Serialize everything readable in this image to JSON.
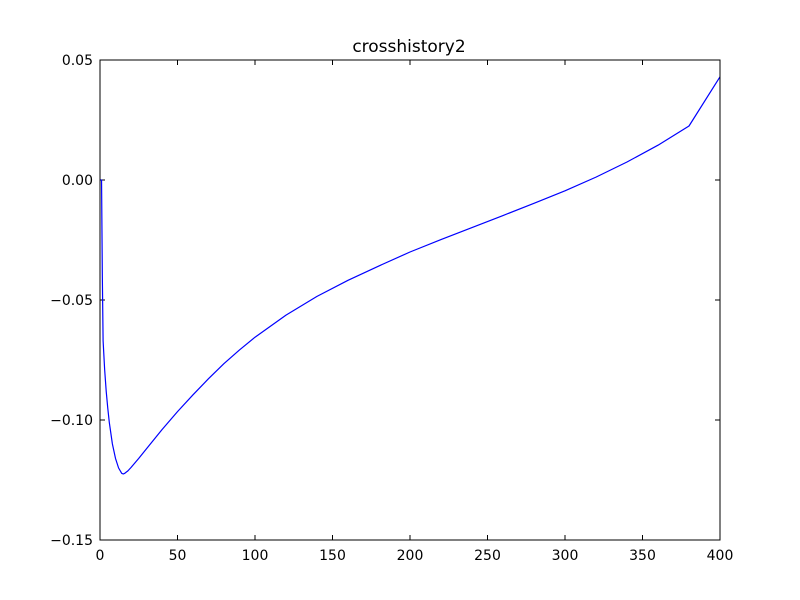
{
  "chart_data": {
    "type": "line",
    "title": "crosshistory2",
    "xlabel": "",
    "ylabel": "",
    "xlim": [
      0,
      400
    ],
    "ylim": [
      -0.15,
      0.05
    ],
    "xticks": [
      0,
      50,
      100,
      150,
      200,
      250,
      300,
      350,
      400
    ],
    "xtick_labels": [
      "0",
      "50",
      "100",
      "150",
      "200",
      "250",
      "300",
      "350",
      "400"
    ],
    "yticks": [
      -0.15,
      -0.1,
      -0.05,
      0.0,
      0.05
    ],
    "ytick_labels": [
      "−0.15",
      "−0.10",
      "−0.05",
      "0.00",
      "0.05"
    ],
    "grid": false,
    "series": [
      {
        "color": "#0000ff",
        "x": [
          0,
          1,
          1.5,
          2,
          3,
          4,
          5,
          6,
          8,
          10,
          12,
          14,
          15,
          16,
          18,
          20,
          25,
          30,
          40,
          50,
          60,
          70,
          80,
          90,
          100,
          120,
          140,
          160,
          180,
          200,
          220,
          240,
          260,
          280,
          300,
          320,
          340,
          360,
          380,
          400
        ],
        "y": [
          0.0,
          0.0,
          -0.04,
          -0.067,
          -0.079,
          -0.088,
          -0.095,
          -0.101,
          -0.11,
          -0.116,
          -0.12,
          -0.1222,
          -0.1225,
          -0.1222,
          -0.1212,
          -0.1198,
          -0.116,
          -0.112,
          -0.104,
          -0.0965,
          -0.0895,
          -0.0828,
          -0.0765,
          -0.0708,
          -0.0655,
          -0.0563,
          -0.0485,
          -0.0418,
          -0.0358,
          -0.03,
          -0.0248,
          -0.0198,
          -0.0148,
          -0.0097,
          -0.0045,
          0.0012,
          0.0075,
          0.0145,
          0.0225,
          0.043
        ]
      }
    ]
  }
}
